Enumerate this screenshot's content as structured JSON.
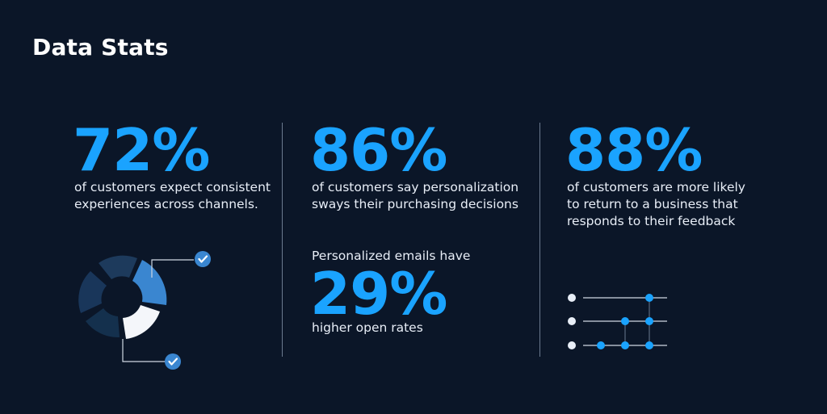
{
  "title": "Data Stats",
  "stats": [
    {
      "value": "72%",
      "line1": "of customers expect consistent",
      "line2": "experiences across channels."
    },
    {
      "value": "86%",
      "line1": "of customers say personalization",
      "line2": "sways their purchasing decisions"
    },
    {
      "value": "88%",
      "line1": "of customers are more likely",
      "line2": "to return to a business that",
      "line3": "responds to their feedback"
    }
  ],
  "secondary": {
    "intro": "Personalized emails have",
    "value": "29%",
    "caption": "higher open rates"
  },
  "colors": {
    "background": "#0b1628",
    "accent": "#1aa3ff",
    "muted_segment": "#1d3a5c",
    "highlight_segment": "#3a86d0"
  },
  "icons": [
    "donut-chart-icon",
    "check-icon",
    "network-nodes-icon"
  ]
}
